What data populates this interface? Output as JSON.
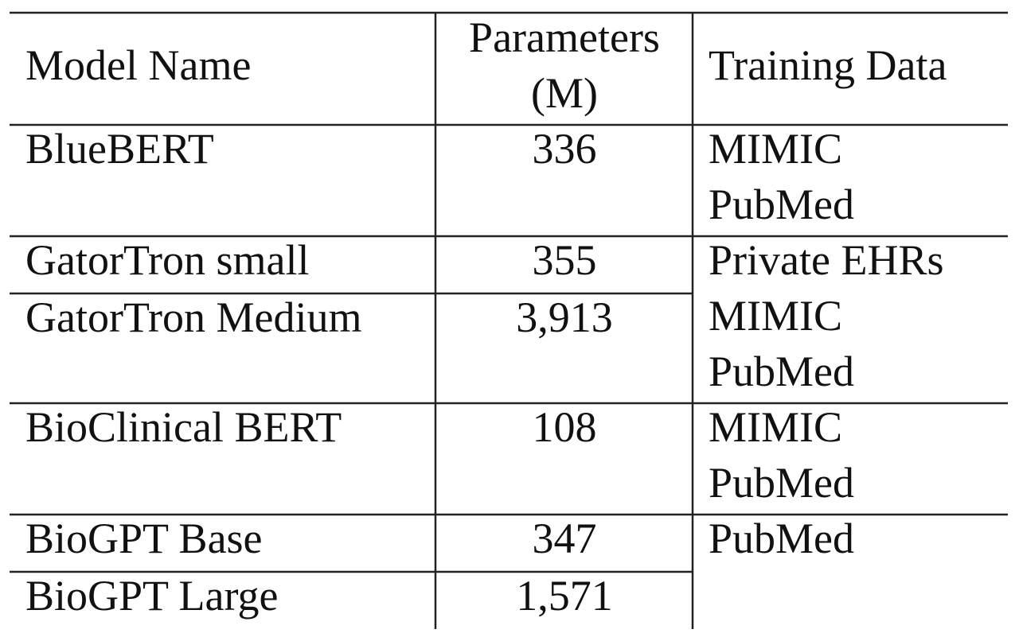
{
  "table": {
    "header": {
      "model": "Model Name",
      "params": [
        "Parameters",
        "(M)"
      ],
      "training": "Training Data"
    },
    "groups": [
      {
        "models": [
          {
            "name": "BlueBERT",
            "params": "336"
          }
        ],
        "training": [
          "MIMIC",
          "PubMed"
        ]
      },
      {
        "models": [
          {
            "name": "GatorTron small",
            "params": "355"
          },
          {
            "name": "GatorTron Medium",
            "params": "3,913"
          }
        ],
        "training": [
          "Private EHRs",
          "MIMIC",
          "PubMed"
        ]
      },
      {
        "models": [
          {
            "name": "BioClinical BERT",
            "params": "108"
          }
        ],
        "training": [
          "MIMIC",
          "PubMed"
        ]
      },
      {
        "models": [
          {
            "name": "BioGPT Base",
            "params": "347"
          },
          {
            "name": "BioGPT Large",
            "params": "1,571"
          }
        ],
        "training": [
          "PubMed"
        ]
      }
    ]
  }
}
